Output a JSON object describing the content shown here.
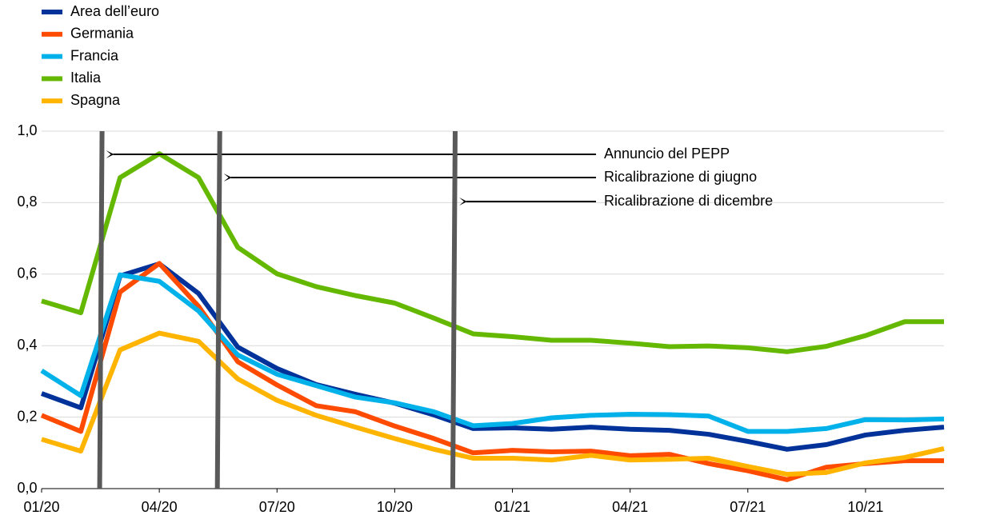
{
  "chart_data": {
    "type": "line",
    "categories": [
      "01/20",
      null,
      null,
      "04/20",
      null,
      null,
      "07/20",
      null,
      null,
      "10/20",
      null,
      null,
      "01/21",
      null,
      null,
      "04/21",
      null,
      null,
      "07/21",
      null,
      null,
      "10/21",
      null,
      null
    ],
    "series": [
      {
        "name": "Area dell’euro",
        "color": "#003299",
        "values": [
          0.266,
          0.226,
          0.595,
          0.629,
          0.546,
          0.396,
          0.336,
          0.291,
          0.264,
          0.239,
          0.206,
          0.168,
          0.17,
          0.166,
          0.172,
          0.166,
          0.163,
          0.152,
          0.132,
          0.11,
          0.123,
          0.15,
          0.163,
          0.172
        ]
      },
      {
        "name": "Germania",
        "color": "#ff4b00",
        "values": [
          0.205,
          0.16,
          0.55,
          0.63,
          0.51,
          0.355,
          0.29,
          0.232,
          0.215,
          0.175,
          0.14,
          0.1,
          0.107,
          0.103,
          0.105,
          0.092,
          0.096,
          0.07,
          0.05,
          0.025,
          0.06,
          0.07,
          0.078,
          0.078
        ]
      },
      {
        "name": "Francia",
        "color": "#00b1ea",
        "values": [
          0.33,
          0.26,
          0.598,
          0.58,
          0.497,
          0.374,
          0.32,
          0.288,
          0.256,
          0.24,
          0.215,
          0.176,
          0.182,
          0.198,
          0.205,
          0.208,
          0.207,
          0.203,
          0.16,
          0.16,
          0.168,
          0.193,
          0.192,
          0.195
        ]
      },
      {
        "name": "Italia",
        "color": "#65b800",
        "values": [
          0.525,
          0.492,
          0.87,
          0.937,
          0.87,
          0.675,
          0.601,
          0.565,
          0.54,
          0.519,
          0.477,
          0.433,
          0.425,
          0.415,
          0.415,
          0.407,
          0.397,
          0.399,
          0.394,
          0.383,
          0.398,
          0.428,
          0.467,
          0.467
        ]
      },
      {
        "name": "Spagna",
        "color": "#ffb400",
        "values": [
          0.138,
          0.105,
          0.388,
          0.435,
          0.412,
          0.307,
          0.247,
          0.205,
          0.172,
          0.14,
          0.11,
          0.085,
          0.085,
          0.08,
          0.093,
          0.08,
          0.082,
          0.085,
          0.062,
          0.04,
          0.045,
          0.072,
          0.087,
          0.112
        ]
      }
    ],
    "ylim": [
      0,
      1
    ],
    "yticks": [
      {
        "value": 0,
        "label": "0,0"
      },
      {
        "value": 0.2,
        "label": "0,2"
      },
      {
        "value": 0.4,
        "label": "0,4"
      },
      {
        "value": 0.6,
        "label": "0,6"
      },
      {
        "value": 0.8,
        "label": "0,8"
      },
      {
        "value": 1,
        "label": "1,0"
      }
    ],
    "grid": true,
    "events": [
      {
        "text": "Annuncio del PEPP",
        "x": 1.5
      },
      {
        "text": "Ricalibrazione di giugno",
        "x": 4.5
      },
      {
        "text": "Ricalibrazione di dicembre",
        "x": 10.5
      }
    ]
  }
}
